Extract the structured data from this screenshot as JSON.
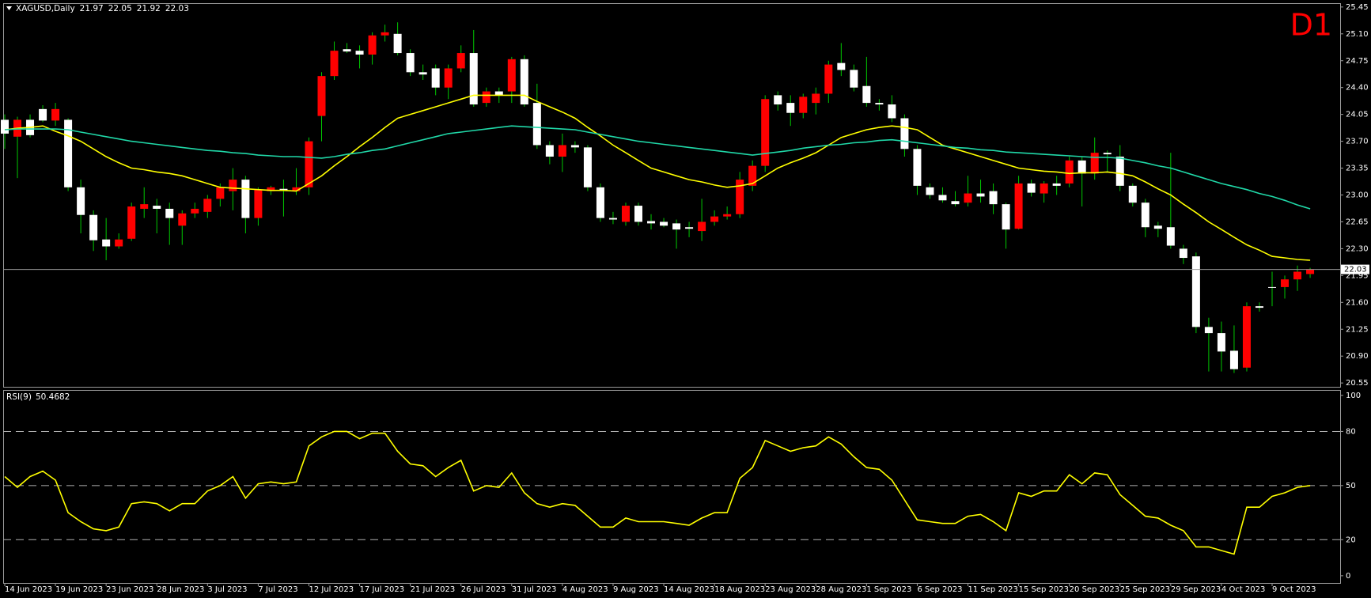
{
  "chart_data": [
    {
      "type": "candlestick",
      "title": "XAGUSD,Daily",
      "header_values": [
        21.97,
        22.05,
        21.92,
        22.03
      ],
      "timeframe": "D1",
      "categories": [
        "14 Jun 2023",
        null,
        null,
        null,
        "19 Jun 2023",
        null,
        null,
        null,
        "23 Jun 2023",
        null,
        null,
        null,
        "28 Jun 2023",
        null,
        null,
        null,
        "3 Jul 2023",
        null,
        null,
        null,
        "7 Jul 2023",
        null,
        null,
        null,
        "12 Jul 2023",
        null,
        null,
        null,
        "17 Jul 2023",
        null,
        null,
        null,
        "21 Jul 2023",
        null,
        null,
        null,
        "26 Jul 2023",
        null,
        null,
        null,
        "31 Jul 2023",
        null,
        null,
        null,
        "4 Aug 2023",
        null,
        null,
        null,
        "9 Aug 2023",
        null,
        null,
        null,
        "14 Aug 2023",
        null,
        null,
        null,
        "18 Aug 2023",
        null,
        null,
        null,
        "23 Aug 2023",
        null,
        null,
        null,
        "28 Aug 2023",
        null,
        null,
        null,
        "1 Sep 2023",
        null,
        null,
        null,
        "6 Sep 2023",
        null,
        null,
        null,
        "11 Sep 2023",
        null,
        null,
        null,
        "15 Sep 2023",
        null,
        null,
        null,
        "20 Sep 2023",
        null,
        null,
        null,
        "25 Sep 2023",
        null,
        null,
        null,
        "29 Sep 2023",
        null,
        null,
        null,
        "4 Oct 2023",
        null,
        null,
        null,
        "9 Oct 2023",
        null,
        null,
        null
      ],
      "open": [
        23.98,
        23.76,
        23.98,
        24.12,
        23.97,
        23.98,
        23.1,
        22.74,
        22.42,
        22.33,
        22.43,
        22.82,
        22.86,
        22.82,
        22.6,
        22.76,
        22.78,
        22.95,
        23.05,
        23.2,
        22.7,
        23.05,
        23.08,
        23.05,
        23.1,
        24.03,
        24.55,
        24.9,
        24.88,
        24.83,
        25.08,
        25.1,
        24.85,
        24.6,
        24.65,
        24.4,
        24.65,
        24.85,
        24.2,
        24.35,
        24.35,
        24.77,
        24.2,
        23.65,
        23.5,
        23.65,
        23.62,
        23.1,
        22.7,
        22.65,
        22.86,
        22.66,
        22.65,
        22.63,
        22.58,
        22.53,
        22.65,
        22.72,
        22.75,
        23.12,
        23.38,
        24.3,
        24.2,
        24.07,
        24.2,
        24.32,
        24.72,
        24.63,
        24.42,
        24.2,
        24.18,
        24.0,
        23.6,
        23.1,
        23.0,
        22.92,
        22.9,
        23.02,
        23.05,
        22.88,
        22.56,
        23.15,
        23.02,
        23.15,
        23.15,
        23.45,
        23.28,
        23.55,
        23.5,
        23.12,
        22.9,
        22.6,
        22.58,
        22.3,
        22.2,
        21.28,
        21.2,
        20.97,
        20.75,
        21.55,
        21.8,
        21.8,
        21.9,
        21.97
      ],
      "high": [
        24.05,
        24.02,
        24.05,
        24.17,
        24.2,
        24.0,
        23.2,
        22.8,
        22.7,
        22.5,
        22.9,
        23.1,
        22.95,
        22.9,
        22.8,
        22.9,
        23.0,
        23.15,
        23.35,
        23.25,
        23.1,
        23.12,
        23.2,
        23.35,
        23.75,
        24.6,
        25.0,
        24.98,
        24.95,
        25.12,
        25.22,
        25.25,
        24.9,
        24.7,
        24.7,
        24.7,
        24.95,
        25.15,
        24.4,
        24.4,
        24.8,
        24.82,
        24.45,
        23.7,
        23.8,
        23.7,
        23.65,
        23.15,
        22.78,
        22.9,
        22.9,
        22.75,
        22.7,
        22.68,
        22.65,
        22.95,
        22.8,
        22.85,
        23.3,
        23.45,
        24.3,
        24.35,
        24.3,
        24.32,
        24.4,
        24.75,
        24.98,
        24.7,
        24.8,
        24.25,
        24.3,
        24.05,
        23.65,
        23.15,
        23.1,
        23.05,
        23.25,
        23.2,
        23.15,
        22.9,
        23.25,
        23.2,
        23.18,
        23.25,
        23.5,
        23.5,
        23.75,
        23.58,
        23.65,
        23.15,
        22.95,
        22.65,
        23.55,
        22.35,
        22.25,
        21.4,
        21.35,
        21.3,
        21.6,
        21.6,
        22.0,
        21.95,
        22.08,
        22.05
      ],
      "low": [
        23.6,
        23.22,
        23.75,
        23.95,
        23.9,
        23.05,
        22.5,
        22.27,
        22.15,
        22.3,
        22.4,
        22.7,
        22.5,
        22.35,
        22.35,
        22.7,
        22.7,
        22.85,
        22.8,
        22.5,
        22.6,
        23.0,
        22.72,
        23.0,
        23.0,
        23.7,
        24.5,
        24.85,
        24.65,
        24.7,
        25.0,
        24.82,
        24.55,
        24.5,
        24.3,
        24.25,
        24.6,
        24.15,
        24.15,
        24.2,
        24.2,
        24.15,
        23.6,
        23.4,
        23.3,
        23.55,
        23.05,
        22.65,
        22.62,
        22.6,
        22.6,
        22.55,
        22.58,
        22.3,
        22.45,
        22.4,
        22.6,
        22.68,
        22.7,
        23.05,
        23.3,
        24.1,
        23.9,
        24.0,
        24.05,
        24.2,
        24.55,
        24.35,
        24.15,
        24.1,
        23.95,
        23.5,
        23.0,
        22.95,
        22.9,
        22.85,
        22.85,
        22.9,
        22.75,
        22.3,
        22.55,
        22.98,
        22.9,
        23.0,
        23.1,
        22.85,
        23.2,
        23.3,
        23.05,
        22.85,
        22.45,
        22.45,
        22.3,
        22.1,
        21.2,
        20.7,
        20.7,
        20.68,
        20.7,
        21.48,
        21.55,
        21.65,
        21.75,
        21.92
      ],
      "close": [
        23.8,
        23.98,
        23.78,
        23.97,
        24.12,
        23.1,
        22.74,
        22.41,
        22.33,
        22.42,
        22.85,
        22.88,
        22.82,
        22.7,
        22.76,
        22.82,
        22.95,
        23.1,
        23.2,
        22.7,
        23.07,
        23.1,
        23.06,
        23.1,
        23.7,
        24.55,
        24.88,
        24.87,
        24.83,
        25.08,
        25.12,
        24.85,
        24.6,
        24.57,
        24.4,
        24.65,
        24.85,
        24.18,
        24.35,
        24.3,
        24.77,
        24.18,
        23.65,
        23.5,
        23.65,
        23.62,
        23.1,
        22.7,
        22.68,
        22.86,
        22.65,
        22.63,
        22.6,
        22.55,
        22.56,
        22.65,
        22.72,
        22.75,
        23.2,
        23.38,
        24.25,
        24.18,
        24.07,
        24.28,
        24.32,
        24.7,
        24.63,
        24.4,
        24.2,
        24.18,
        24.0,
        23.6,
        23.12,
        23.0,
        22.93,
        22.88,
        23.02,
        22.98,
        22.88,
        22.55,
        23.15,
        23.03,
        23.15,
        23.12,
        23.45,
        23.28,
        23.55,
        23.53,
        23.12,
        22.9,
        22.58,
        22.56,
        22.34,
        22.18,
        21.28,
        21.2,
        20.96,
        20.73,
        21.55,
        21.53,
        21.79,
        21.9,
        22.0,
        22.03
      ],
      "up_color": "#ff0000",
      "down_color": "#ffffff",
      "wick_color": "#00c800",
      "lines": [
        {
          "color": "#ffff00",
          "values": [
            23.85,
            23.87,
            23.88,
            23.9,
            23.83,
            23.77,
            23.7,
            23.6,
            23.5,
            23.42,
            23.35,
            23.33,
            23.3,
            23.28,
            23.25,
            23.2,
            23.15,
            23.1,
            23.09,
            23.08,
            23.07,
            23.06,
            23.06,
            23.05,
            23.15,
            23.25,
            23.38,
            23.5,
            23.63,
            23.75,
            23.88,
            24.0,
            24.05,
            24.1,
            24.15,
            24.2,
            24.25,
            24.3,
            24.3,
            24.3,
            24.3,
            24.3,
            24.22,
            24.15,
            24.08,
            24.0,
            23.88,
            23.77,
            23.65,
            23.55,
            23.45,
            23.35,
            23.3,
            23.25,
            23.2,
            23.17,
            23.13,
            23.1,
            23.12,
            23.15,
            23.25,
            23.35,
            23.42,
            23.48,
            23.55,
            23.65,
            23.75,
            23.8,
            23.85,
            23.88,
            23.9,
            23.88,
            23.85,
            23.75,
            23.65,
            23.6,
            23.55,
            23.5,
            23.45,
            23.4,
            23.35,
            23.33,
            23.31,
            23.3,
            23.28,
            23.29,
            23.29,
            23.3,
            23.28,
            23.25,
            23.17,
            23.08,
            23.0,
            22.88,
            22.77,
            22.65,
            22.55,
            22.45,
            22.35,
            22.28,
            22.2,
            22.18,
            22.16,
            22.15
          ]
        },
        {
          "color": "#20d8a8",
          "values": [
            23.85,
            23.86,
            23.86,
            23.86,
            23.86,
            23.85,
            23.82,
            23.79,
            23.76,
            23.73,
            23.7,
            23.68,
            23.66,
            23.64,
            23.62,
            23.6,
            23.58,
            23.57,
            23.55,
            23.54,
            23.52,
            23.51,
            23.5,
            23.5,
            23.49,
            23.48,
            23.5,
            23.53,
            23.55,
            23.58,
            23.6,
            23.64,
            23.68,
            23.72,
            23.76,
            23.8,
            23.82,
            23.84,
            23.86,
            23.88,
            23.9,
            23.89,
            23.88,
            23.87,
            23.86,
            23.85,
            23.82,
            23.79,
            23.76,
            23.73,
            23.7,
            23.68,
            23.66,
            23.64,
            23.62,
            23.6,
            23.58,
            23.56,
            23.54,
            23.52,
            23.54,
            23.56,
            23.58,
            23.61,
            23.63,
            23.65,
            23.66,
            23.68,
            23.69,
            23.71,
            23.72,
            23.7,
            23.68,
            23.66,
            23.64,
            23.62,
            23.61,
            23.59,
            23.58,
            23.56,
            23.55,
            23.54,
            23.53,
            23.52,
            23.51,
            23.5,
            23.49,
            23.49,
            23.48,
            23.45,
            23.42,
            23.38,
            23.35,
            23.3,
            23.25,
            23.2,
            23.15,
            23.11,
            23.07,
            23.02,
            22.98,
            22.93,
            22.87,
            22.82
          ]
        }
      ],
      "last_price": 22.03,
      "ylim": [
        20.5,
        25.5
      ],
      "yticks": [
        25.45,
        {
          "value": 25.1,
          "label": "25.10"
        },
        24.75,
        {
          "value": 24.4,
          "label": "24.40"
        },
        24.05,
        {
          "value": 23.7,
          "label": "23.70"
        },
        23.35,
        {
          "value": 23,
          "label": "23.00"
        },
        22.65,
        {
          "value": 22.3,
          "label": "22.30"
        },
        21.95,
        {
          "value": 21.6,
          "label": "21.60"
        },
        21.25,
        {
          "value": 20.9,
          "label": "20.90"
        },
        20.55
      ]
    },
    {
      "type": "line",
      "title": "RSI(9)",
      "title_value": 50.4682,
      "color": "#ffff00",
      "values": [
        55,
        49,
        55,
        58,
        53,
        35,
        30,
        26,
        25,
        27,
        40,
        41,
        40,
        36,
        40,
        40,
        47,
        50,
        55,
        43,
        51,
        52,
        51,
        52,
        72,
        77,
        80,
        80,
        76,
        79,
        79,
        69,
        62,
        61,
        55,
        60,
        64,
        47,
        50,
        49,
        57,
        46,
        40,
        38,
        40,
        39,
        33,
        27,
        27,
        32,
        30,
        30,
        30,
        29,
        28,
        32,
        35,
        35,
        54,
        60,
        75,
        72,
        69,
        71,
        72,
        77,
        73,
        66,
        60,
        59,
        53,
        42,
        31,
        30,
        29,
        29,
        33,
        34,
        30,
        25,
        46,
        44,
        47,
        47,
        56,
        51,
        57,
        56,
        45,
        39,
        33,
        32,
        28,
        25,
        16,
        16,
        14,
        12,
        38,
        38,
        44,
        46,
        49,
        50
      ],
      "grid": "dashed",
      "ylim": [
        -4,
        103
      ],
      "yticks": [
        0,
        20,
        50,
        80,
        100
      ]
    }
  ]
}
